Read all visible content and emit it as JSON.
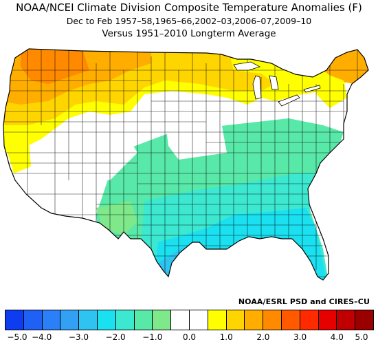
{
  "title": {
    "line1": "NOAA/NCEI Climate Division Composite Temperature Anomalies (F)",
    "line2": "Dec to Feb  1957–58,1965–66,2002–03,2006–07,2009–10",
    "line3": "Versus 1951–2010 Longterm Average"
  },
  "credit": "NOAA/ESRL PSD and CIRES–CU",
  "legend": {
    "colors": [
      "#0d3df0",
      "#1f60f5",
      "#2b7ff7",
      "#32a0f3",
      "#2fc3f0",
      "#1ae0f0",
      "#3ce8d0",
      "#58e8a8",
      "#7ee88a",
      "#ffffff",
      "#ffffff",
      "#ffff00",
      "#ffd500",
      "#ffae00",
      "#ff8a00",
      "#ff5a00",
      "#ff2a00",
      "#e60000",
      "#c00000",
      "#9a0000"
    ],
    "tick_labels": [
      "−5.0",
      "−4.0",
      "−3.0",
      "−2.0",
      "−1.0",
      "0.0",
      "1.0",
      "2.0",
      "3.0",
      "4.0",
      "5.0"
    ]
  },
  "map": {
    "region_colors": {
      "strong_warm": "#ff8a00",
      "warm": "#ffae00",
      "mild_warm": "#ffd500",
      "slight_warm": "#ffff00",
      "neutral": "#ffffff",
      "slight_cool": "#7ee88a",
      "mild_cool": "#58e8a8",
      "cool": "#3ce8d0",
      "cooler": "#1ae0f0",
      "coolest": "#2fc3f0"
    }
  }
}
